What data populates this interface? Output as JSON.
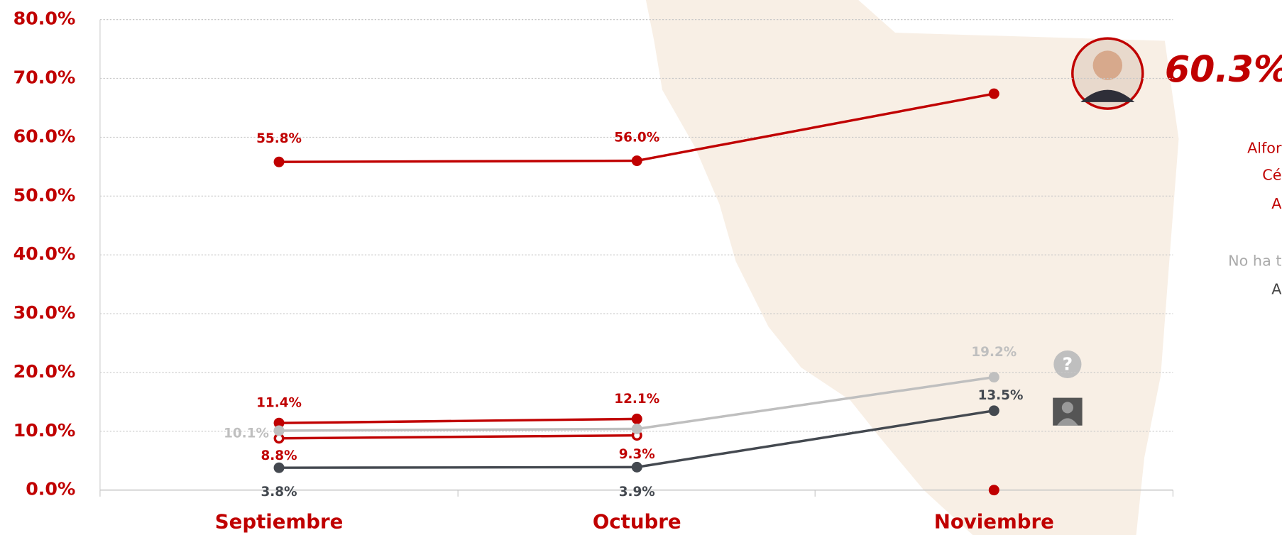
{
  "chart_data": {
    "type": "line",
    "categories": [
      "Septiembre",
      "Octubre",
      "Noviembre"
    ],
    "ylim": [
      0,
      80
    ],
    "yticks": [
      {
        "value": 0,
        "label": "0.0%"
      },
      {
        "value": 10,
        "label": "10.0%"
      },
      {
        "value": 20,
        "label": "20.0%"
      },
      {
        "value": 30,
        "label": "30.0%"
      },
      {
        "value": 40,
        "label": "40.0%"
      },
      {
        "value": 50,
        "label": "50.0%"
      },
      {
        "value": 60,
        "label": "60.0%"
      },
      {
        "value": 70,
        "label": "70.0%"
      },
      {
        "value": 80,
        "label": "80.0%"
      }
    ],
    "grid": true,
    "series": [
      {
        "color": "#c00000",
        "values": [
          55.8,
          56.0,
          67.4
        ],
        "value_labels": [
          "55.8%",
          "56.0%",
          null
        ]
      },
      {
        "color": "#c00000",
        "values": [
          11.4,
          12.1,
          null
        ],
        "value_labels": [
          "11.4%",
          "12.1%",
          null
        ]
      },
      {
        "color": "#c00000",
        "hollow": true,
        "values": [
          8.8,
          9.3,
          null
        ],
        "value_labels": [
          "8.8%",
          "9.3%",
          null
        ]
      },
      {
        "color": "#bfbfbf",
        "values": [
          10.1,
          10.4,
          19.2
        ],
        "value_labels": [
          "10.1%",
          null,
          "19.2%"
        ]
      },
      {
        "color": "#444950",
        "values": [
          3.8,
          3.9,
          13.5
        ],
        "value_labels": [
          "3.8%",
          "3.9%",
          "13.5%"
        ]
      },
      {
        "color": "#c00000",
        "values": [
          null,
          null,
          0
        ],
        "value_labels": [
          null,
          null,
          null
        ]
      }
    ],
    "annotation": "60.3%",
    "legend_fragments": [
      "Alfor",
      "Cé",
      "A",
      "No ha t",
      "A"
    ]
  }
}
